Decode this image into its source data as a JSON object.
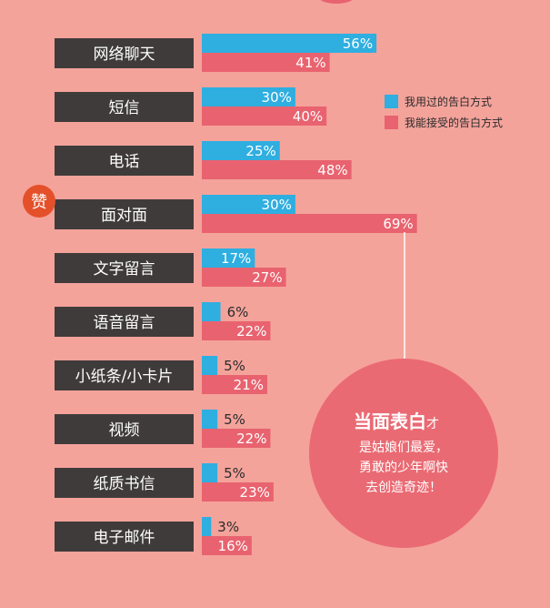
{
  "colors": {
    "background": "#f4a39b",
    "used": "#2faee0",
    "accept": "#e8636f",
    "category_box": "#3f3b3b",
    "badge": "#e4502a",
    "callout": "#ea6a73"
  },
  "legend": {
    "used": "我用过的告白方式",
    "accept": "我能接受的告白方式"
  },
  "badge": "赞",
  "callout": {
    "headline": "当面表白",
    "headline_suffix": "才",
    "line2": "是姑娘们最爱，",
    "line3": "勇敢的少年啊快",
    "line4": "去创造奇迹！"
  },
  "chart_data": {
    "type": "bar",
    "categories": [
      "网络聊天",
      "短信",
      "电话",
      "面对面",
      "文字留言",
      "语音留言",
      "小纸条/小卡片",
      "视频",
      "纸质书信",
      "电子邮件"
    ],
    "series": [
      {
        "name": "我用过的告白方式",
        "values": [
          56,
          30,
          25,
          30,
          17,
          6,
          5,
          5,
          5,
          3
        ],
        "labels": [
          "56%",
          "30%",
          "25%",
          "30%",
          "17%",
          "6%",
          "5%",
          "5%",
          "5%",
          "3%"
        ]
      },
      {
        "name": "我能接受的告白方式",
        "values": [
          41,
          40,
          48,
          69,
          27,
          22,
          21,
          22,
          23,
          16
        ],
        "labels": [
          "41%",
          "40%",
          "48%",
          "69%",
          "27%",
          "22%",
          "21%",
          "22%",
          "23%",
          "16%"
        ]
      }
    ],
    "ylim": [
      0,
      100
    ],
    "legend_position": "right"
  }
}
